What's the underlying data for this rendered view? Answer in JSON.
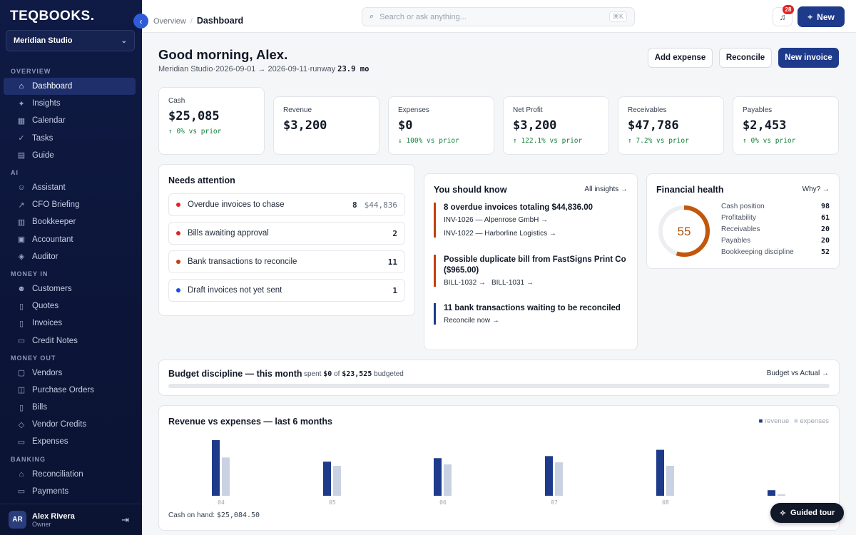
{
  "app": {
    "logo": "TEQBOOKS",
    "org": "Meridian Studio"
  },
  "nav": {
    "sections": [
      {
        "title": "OVERVIEW",
        "items": [
          {
            "label": "Dashboard",
            "icon": "home-icon",
            "glyph": "⌂",
            "active": true
          },
          {
            "label": "Insights",
            "icon": "sparkle-icon",
            "glyph": "✦"
          },
          {
            "label": "Calendar",
            "icon": "calendar-icon",
            "glyph": "▦"
          },
          {
            "label": "Tasks",
            "icon": "check-icon",
            "glyph": "✓"
          },
          {
            "label": "Guide",
            "icon": "book-icon",
            "glyph": "▤"
          }
        ]
      },
      {
        "title": "AI",
        "items": [
          {
            "label": "Assistant",
            "icon": "assistant-icon",
            "glyph": "☺"
          },
          {
            "label": "CFO Briefing",
            "icon": "trend-icon",
            "glyph": "↗"
          },
          {
            "label": "Bookkeeper",
            "icon": "ledger-icon",
            "glyph": "▥"
          },
          {
            "label": "Accountant",
            "icon": "briefcase-icon",
            "glyph": "▣"
          },
          {
            "label": "Auditor",
            "icon": "shield-icon",
            "glyph": "◈"
          }
        ]
      },
      {
        "title": "MONEY IN",
        "items": [
          {
            "label": "Customers",
            "icon": "users-icon",
            "glyph": "☻"
          },
          {
            "label": "Quotes",
            "icon": "document-icon",
            "glyph": "▯"
          },
          {
            "label": "Invoices",
            "icon": "invoice-icon",
            "glyph": "▯"
          },
          {
            "label": "Credit Notes",
            "icon": "receipt-icon",
            "glyph": "▭"
          }
        ]
      },
      {
        "title": "MONEY OUT",
        "items": [
          {
            "label": "Vendors",
            "icon": "store-icon",
            "glyph": "▢"
          },
          {
            "label": "Purchase Orders",
            "icon": "cart-icon",
            "glyph": "◫"
          },
          {
            "label": "Bills",
            "icon": "bill-icon",
            "glyph": "▯"
          },
          {
            "label": "Vendor Credits",
            "icon": "tag-icon",
            "glyph": "◇"
          },
          {
            "label": "Expenses",
            "icon": "wallet-icon",
            "glyph": "▭"
          }
        ]
      },
      {
        "title": "BANKING",
        "items": [
          {
            "label": "Reconciliation",
            "icon": "bank-icon",
            "glyph": "⌂"
          },
          {
            "label": "Payments",
            "icon": "card-icon",
            "glyph": "▭"
          }
        ]
      }
    ]
  },
  "user": {
    "initials": "AR",
    "name": "Alex Rivera",
    "role": "Owner"
  },
  "topbar": {
    "crumb_parent": "Overview",
    "crumb_current": "Dashboard",
    "search_placeholder": "Search or ask anything...",
    "search_shortcut": "⌘K",
    "notifications": "28",
    "new_label": "New"
  },
  "header": {
    "greeting": "Good morning, Alex.",
    "org": "Meridian Studio",
    "range": "2026-09-01 → 2026-09-11",
    "runway_label": "runway",
    "runway_value": "23.9 mo",
    "actions": [
      "Add expense",
      "Reconcile",
      "New invoice"
    ]
  },
  "kpis": [
    {
      "label": "Cash",
      "value": "$25,085",
      "delta": "↑ 0% vs prior"
    },
    {
      "label": "Revenue",
      "value": "$3,200",
      "delta": ""
    },
    {
      "label": "Expenses",
      "value": "$0",
      "delta": "↓ 100% vs prior"
    },
    {
      "label": "Net Profit",
      "value": "$3,200",
      "delta": "↑ 122.1% vs prior"
    },
    {
      "label": "Receivables",
      "value": "$47,786",
      "delta": "↑ 7.2% vs prior"
    },
    {
      "label": "Payables",
      "value": "$2,453",
      "delta": "↑ 0% vs prior"
    }
  ],
  "attention": {
    "title": "Needs attention",
    "rows": [
      {
        "label": "Overdue invoices to chase",
        "count": "8",
        "amount": "$44,836",
        "color": "#dc2626"
      },
      {
        "label": "Bills awaiting approval",
        "count": "2",
        "amount": "",
        "color": "#dc2626"
      },
      {
        "label": "Bank transactions to reconcile",
        "count": "11",
        "amount": "",
        "color": "#c2410c"
      },
      {
        "label": "Draft invoices not yet sent",
        "count": "1",
        "amount": "",
        "color": "#1d4ed8"
      }
    ]
  },
  "insights": {
    "title": "You should know",
    "link": "All insights →",
    "items": [
      {
        "title": "8 overdue invoices totaling $44,836.00",
        "links": [
          "INV-1026 — Alpenrose GmbH →",
          "INV-1022 — Harborline Logistics →"
        ],
        "color": "#c2410c"
      },
      {
        "title": "Possible duplicate bill from FastSigns Print Co ($965.00)",
        "links": [
          "BILL-1032 →",
          "BILL-1031 →"
        ],
        "color": "#c2410c"
      },
      {
        "title": "11 bank transactions waiting to be reconciled",
        "links": [
          "Reconcile now →"
        ],
        "color": "#1e3a8a"
      }
    ]
  },
  "health": {
    "title": "Financial health",
    "link": "Why? →",
    "score": "55",
    "score_fraction": 0.55,
    "ring_color": "#c2570c",
    "rows": [
      {
        "label": "Cash position",
        "value": "98"
      },
      {
        "label": "Profitability",
        "value": "61"
      },
      {
        "label": "Receivables",
        "value": "20"
      },
      {
        "label": "Payables",
        "value": "20"
      },
      {
        "label": "Bookkeeping discipline",
        "value": "52"
      }
    ]
  },
  "budget": {
    "title": "Budget discipline — this month",
    "spent_prefix": "spent",
    "spent": "$0",
    "of": "of",
    "budget": "$23,525",
    "suffix": "budgeted",
    "link": "Budget vs Actual →",
    "progress": 0
  },
  "chart_data": {
    "type": "bar",
    "title": "Revenue vs expenses — last 6 months",
    "categories": [
      "04",
      "05",
      "06",
      "07",
      "08",
      ""
    ],
    "series": [
      {
        "name": "revenue",
        "values": [
          8000,
          4900,
          5400,
          5700,
          6600,
          800
        ],
        "color": "#1e3a8a"
      },
      {
        "name": "expenses",
        "values": [
          5500,
          4300,
          4500,
          4800,
          4300,
          200
        ],
        "color": "#c9d2e3"
      }
    ],
    "ylim": [
      0,
      8400
    ],
    "legend": "top-right",
    "footer_label": "Cash on hand:",
    "footer_value": "$25,084.50"
  },
  "guided_tour": "Guided tour"
}
